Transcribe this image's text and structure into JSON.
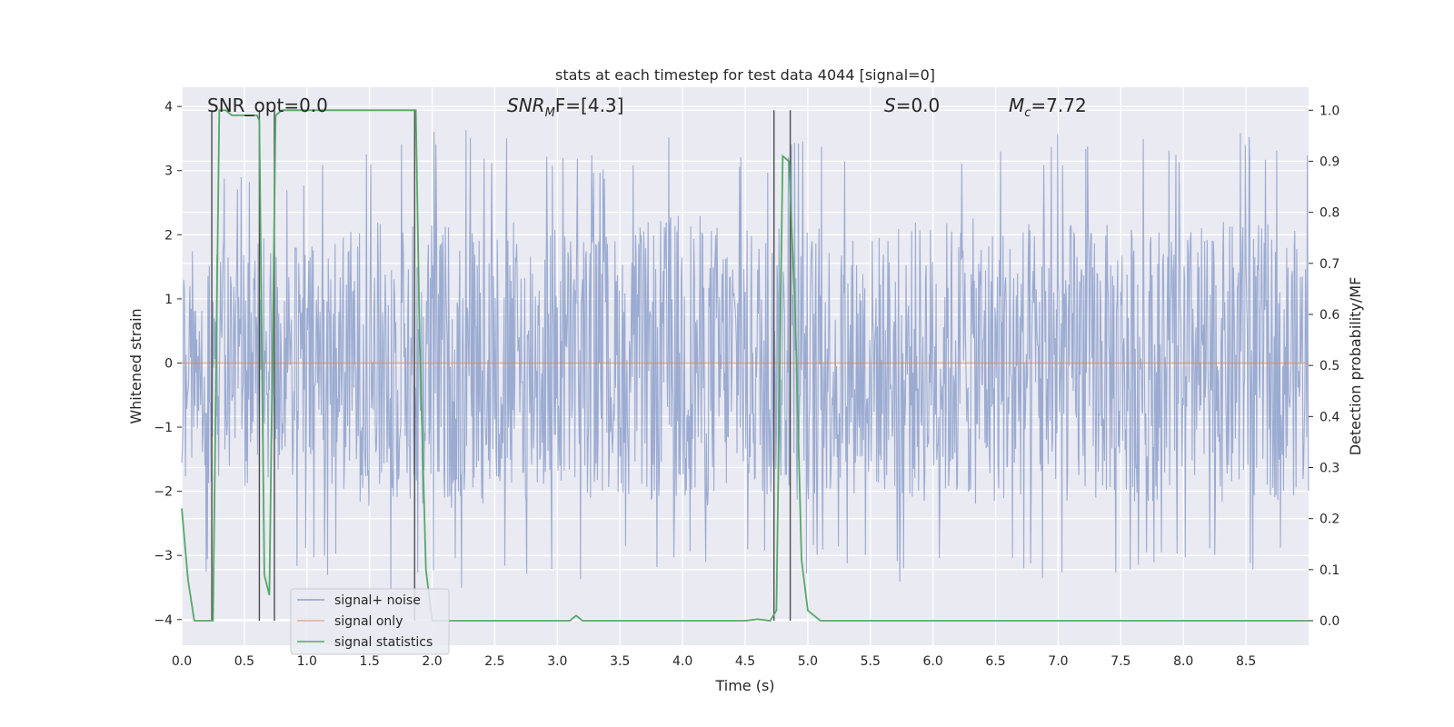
{
  "chart_data": {
    "type": "line",
    "title": "stats at each timestep for test data 4044 [signal=0]",
    "xlabel": "Time (s)",
    "ylabel": "Whitened strain",
    "y2label": "Detection probability/MF",
    "xlim": [
      0,
      9.0
    ],
    "ylim": [
      -4.4,
      4.3
    ],
    "y2lim": [
      -0.048,
      1.045
    ],
    "xticks": [
      "0.0",
      "0.5",
      "1.0",
      "1.5",
      "2.0",
      "2.5",
      "3.0",
      "3.5",
      "4.0",
      "4.5",
      "5.0",
      "5.5",
      "6.0",
      "6.5",
      "7.0",
      "7.5",
      "8.0",
      "8.5"
    ],
    "yticks": [
      "4",
      "3",
      "2",
      "1",
      "0",
      "−1",
      "−2",
      "−3",
      "−4"
    ],
    "y2ticks": [
      "1.0",
      "0.9",
      "0.8",
      "0.7",
      "0.6",
      "0.5",
      "0.4",
      "0.3",
      "0.2",
      "0.1",
      "0.0"
    ],
    "grid": true,
    "legend_position": "lower-left",
    "annotations": {
      "snr_opt": "SNR_opt=0.0",
      "snr_mf_main": "SNR",
      "snr_mf_sub": "M",
      "snr_mf_rest": "F=[4.3]",
      "s_main": "S",
      "s_rest": "=0.0",
      "mc_main": "M",
      "mc_sub": "c",
      "mc_rest": "=7.72"
    },
    "series": [
      {
        "name": "signal+ noise",
        "color": "#8da0cb",
        "axis": "left",
        "envelope": {
          "x": [
            0.0,
            0.5,
            1.0,
            1.5,
            2.0,
            2.5,
            3.0,
            3.5,
            4.0,
            4.5,
            5.0,
            5.5,
            6.0,
            6.5,
            7.0,
            7.5,
            8.0,
            8.5,
            9.0
          ],
          "upper": [
            2.9,
            3.2,
            3.0,
            3.6,
            3.7,
            3.6,
            3.6,
            3.3,
            3.9,
            3.4,
            3.5,
            3.3,
            3.7,
            3.6,
            3.6,
            3.5,
            3.5,
            3.6,
            3.3
          ],
          "lower": [
            -3.4,
            -3.3,
            -3.2,
            -3.6,
            -3.7,
            -3.3,
            -3.5,
            -3.2,
            -3.3,
            -3.4,
            -3.3,
            -3.3,
            -3.6,
            -3.3,
            -3.4,
            -3.3,
            -3.2,
            -3.3,
            -3.2
          ]
        }
      },
      {
        "name": "signal only",
        "color": "#dd8452",
        "axis": "left",
        "x": [
          0.0,
          9.0
        ],
        "y": [
          0.0,
          0.0
        ]
      },
      {
        "name": "signal statistics",
        "color": "#55a868",
        "axis": "right",
        "x": [
          0.0,
          0.05,
          0.1,
          0.15,
          0.2,
          0.25,
          0.3,
          0.35,
          0.4,
          0.45,
          0.5,
          0.55,
          0.6,
          0.62,
          0.66,
          0.7,
          0.75,
          0.8,
          0.85,
          0.9,
          1.0,
          1.5,
          1.87,
          1.9,
          1.95,
          2.0,
          2.5,
          3.0,
          3.1,
          3.15,
          3.2,
          3.5,
          4.0,
          4.5,
          4.6,
          4.7,
          4.75,
          4.8,
          4.85,
          4.9,
          4.95,
          5.0,
          5.1,
          5.5,
          6.0,
          6.5,
          7.0,
          7.5,
          8.0,
          8.5,
          9.0
        ],
        "y": [
          0.22,
          0.08,
          0.0,
          0.0,
          0.0,
          0.0,
          1.0,
          1.0,
          0.99,
          0.99,
          0.99,
          0.99,
          0.99,
          0.98,
          0.09,
          0.05,
          0.99,
          1.0,
          1.0,
          1.0,
          1.0,
          1.0,
          1.0,
          0.55,
          0.1,
          0.0,
          0.0,
          0.0,
          0.0,
          0.01,
          0.0,
          0.0,
          0.0,
          0.0,
          0.003,
          0.0,
          0.02,
          0.91,
          0.9,
          0.6,
          0.12,
          0.02,
          0.0,
          0.0,
          0.0,
          0.0,
          0.0,
          0.0,
          0.0,
          0.0,
          0.0
        ]
      }
    ],
    "vertical_markers": {
      "color": "#4d4d4d",
      "x": [
        0.24,
        0.62,
        0.74,
        1.86,
        4.73,
        4.86
      ]
    }
  }
}
